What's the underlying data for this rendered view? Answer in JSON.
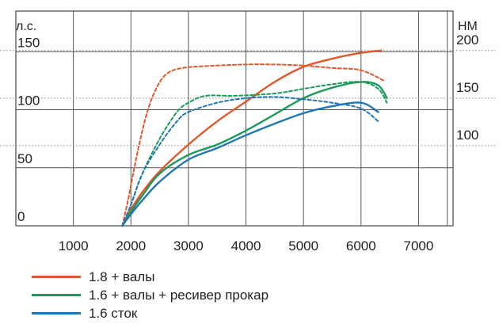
{
  "chart_data": {
    "type": "line",
    "title": "",
    "left_axis_unit": "л.с.",
    "right_axis_unit": "НМ",
    "xlabel": "",
    "x_ticks": [
      1000,
      2000,
      3000,
      4000,
      5000,
      6000,
      7000
    ],
    "xlim": [
      0,
      7600
    ],
    "ylim_left": [
      0,
      185
    ],
    "left_ticks": [
      0,
      50,
      100,
      150
    ],
    "right_ticks": [
      100,
      150,
      200
    ],
    "right_axis_map": {
      "torque": [
        100,
        150,
        200
      ],
      "power_equiv": [
        69,
        110,
        151
      ]
    },
    "grid": true,
    "legend_position": "bottom-left",
    "series": [
      {
        "name": "1.8 + валы",
        "color": "#e2582a",
        "style": "solid",
        "quantity": "power",
        "points": [
          [
            1850,
            0
          ],
          [
            2000,
            14
          ],
          [
            2200,
            29
          ],
          [
            2500,
            47
          ],
          [
            3000,
            70
          ],
          [
            3500,
            90
          ],
          [
            4000,
            107
          ],
          [
            4500,
            124
          ],
          [
            5000,
            137
          ],
          [
            5500,
            144
          ],
          [
            6000,
            149
          ],
          [
            6350,
            151
          ]
        ]
      },
      {
        "name": "1.8 + валы",
        "color": "#e2582a",
        "style": "dashed",
        "quantity": "torque",
        "points": [
          [
            1850,
            0
          ],
          [
            1950,
            22
          ],
          [
            2100,
            60
          ],
          [
            2250,
            92
          ],
          [
            2400,
            114
          ],
          [
            2600,
            130
          ],
          [
            2900,
            136
          ],
          [
            3500,
            138
          ],
          [
            4000,
            139
          ],
          [
            4500,
            139
          ],
          [
            5000,
            138
          ],
          [
            5500,
            136
          ],
          [
            6000,
            134
          ],
          [
            6400,
            125
          ]
        ]
      },
      {
        "name": "1.6 + валы + ресивер прокар",
        "color": "#1c9a5c",
        "style": "solid",
        "quantity": "power",
        "points": [
          [
            1850,
            0
          ],
          [
            2000,
            12
          ],
          [
            2200,
            26
          ],
          [
            2500,
            45
          ],
          [
            3000,
            61
          ],
          [
            3500,
            70
          ],
          [
            4000,
            82
          ],
          [
            4500,
            96
          ],
          [
            5000,
            110
          ],
          [
            5500,
            119
          ],
          [
            6000,
            124
          ],
          [
            6300,
            121
          ],
          [
            6450,
            110
          ]
        ]
      },
      {
        "name": "1.6 + валы + ресивер прокар",
        "color": "#1c9a5c",
        "style": "dashed",
        "quantity": "torque",
        "points": [
          [
            1850,
            0
          ],
          [
            2000,
            18
          ],
          [
            2200,
            45
          ],
          [
            2500,
            75
          ],
          [
            2800,
            98
          ],
          [
            3000,
            106
          ],
          [
            3300,
            112
          ],
          [
            3800,
            112
          ],
          [
            4500,
            114
          ],
          [
            5000,
            118
          ],
          [
            5500,
            122
          ],
          [
            6000,
            124
          ],
          [
            6300,
            118
          ],
          [
            6450,
            106
          ]
        ]
      },
      {
        "name": "1.6 сток",
        "color": "#2176b5",
        "style": "solid",
        "quantity": "power",
        "points": [
          [
            1850,
            0
          ],
          [
            2000,
            10
          ],
          [
            2200,
            22
          ],
          [
            2500,
            38
          ],
          [
            3000,
            57
          ],
          [
            3500,
            67
          ],
          [
            4000,
            78
          ],
          [
            4500,
            88
          ],
          [
            5000,
            97
          ],
          [
            5500,
            103
          ],
          [
            6000,
            106
          ],
          [
            6300,
            98
          ]
        ]
      },
      {
        "name": "1.6 сток",
        "color": "#2176b5",
        "style": "dashed",
        "quantity": "torque",
        "points": [
          [
            1850,
            0
          ],
          [
            2000,
            18
          ],
          [
            2200,
            45
          ],
          [
            2500,
            70
          ],
          [
            2800,
            90
          ],
          [
            3000,
            98
          ],
          [
            3500,
            106
          ],
          [
            4000,
            110
          ],
          [
            4500,
            111
          ],
          [
            5000,
            109
          ],
          [
            5500,
            106
          ],
          [
            6000,
            101
          ],
          [
            6300,
            90
          ]
        ]
      }
    ],
    "legend": [
      {
        "label": "1.8 + валы",
        "color": "#e2582a"
      },
      {
        "label": "1.6 + валы + ресивер прокар",
        "color": "#1c9a5c"
      },
      {
        "label": "1.6 сток",
        "color": "#2176b5"
      }
    ]
  }
}
